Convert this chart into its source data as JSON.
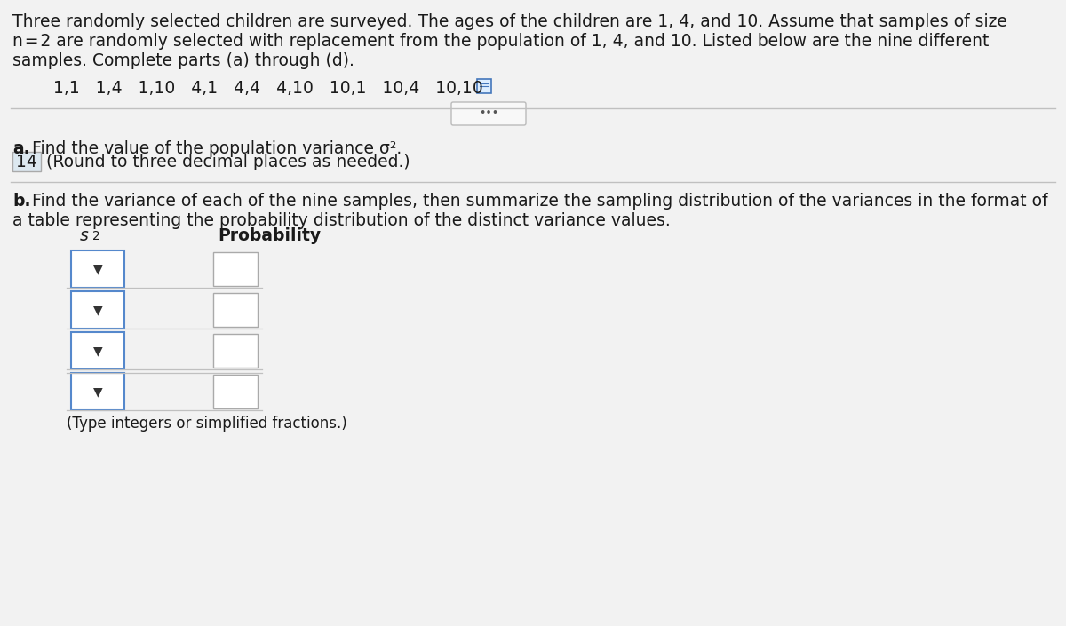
{
  "bg_color": "#f2f2f2",
  "text_color": "#1a1a1a",
  "intro_line1": "Three randomly selected children are surveyed. The ages of the children are 1, 4, and 10. Assume that samples of size",
  "intro_line2": "n = 2 are randomly selected with replacement from the population of 1, 4, and 10. Listed below are the nine different",
  "intro_line3": "samples. Complete parts (a) through (d).",
  "samples_text": "1,1   1,4   1,10   4,1   4,4   4,10   10,1   10,4   10,10",
  "part_a_bold": "a.",
  "part_a_rest": " Find the value of the population variance σ².",
  "answer_14": "14",
  "round_note": "(Round to three decimal places as needed.)",
  "part_b_bold": "b.",
  "part_b_rest": " Find the variance of each of the nine samples, then summarize the sampling distribution of the variances in the format of",
  "part_b_rest2": "a table representing the probability distribution of the distinct variance values.",
  "col_s2_label": "s",
  "col_prob": "Probability",
  "footer_note": "(Type integers or simplified fractions.)",
  "divider_color": "#c0c0c0",
  "box_color": "#ffffff",
  "answer_box_bg": "#dce8f0",
  "dropdown_border": "#5588cc",
  "prob_box_border": "#aaaaaa",
  "table_rows": 4,
  "font_size": 13.5,
  "small_font": 11.0
}
